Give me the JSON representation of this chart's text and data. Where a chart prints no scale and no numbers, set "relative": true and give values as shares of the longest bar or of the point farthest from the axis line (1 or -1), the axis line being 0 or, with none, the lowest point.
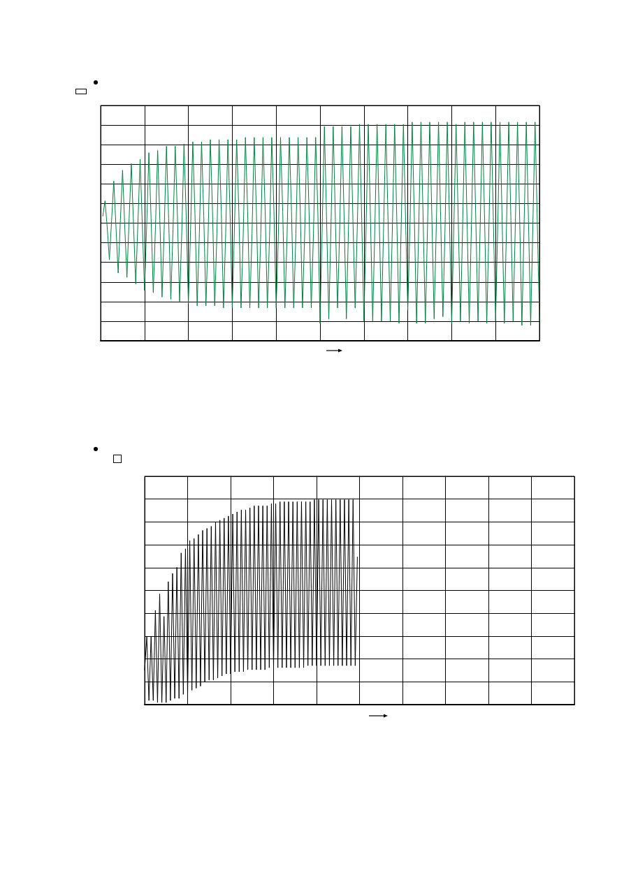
{
  "chart_data": [
    {
      "type": "line",
      "relative": true,
      "grid": true,
      "marker": "none",
      "line_style": "solid",
      "categories": [
        null,
        null,
        null,
        null,
        null,
        null,
        null,
        null,
        null,
        null,
        null,
        null,
        null,
        null,
        null,
        null,
        null,
        null,
        null,
        null,
        null,
        null,
        null,
        null,
        null,
        null,
        null,
        null,
        null,
        null,
        null,
        null,
        null,
        null,
        null,
        null,
        null,
        null,
        null,
        null,
        null,
        null,
        null,
        null,
        null,
        null,
        null,
        null,
        null,
        null,
        null,
        null,
        null,
        null,
        null,
        null,
        null,
        null,
        null,
        null,
        null,
        null,
        null,
        null,
        null,
        null,
        null,
        null,
        null,
        null,
        null,
        null,
        null,
        null,
        null,
        null,
        null,
        null,
        null,
        null,
        null,
        null,
        null,
        null,
        null,
        null,
        null,
        null,
        null,
        null,
        null,
        null,
        null,
        null,
        null,
        null,
        null,
        null,
        null,
        null,
        null,
        null,
        null,
        null,
        null,
        null,
        null,
        null,
        null,
        null,
        null,
        null,
        null,
        null,
        null,
        null,
        null,
        null,
        null,
        null,
        null,
        null,
        null,
        null,
        null,
        null,
        null,
        null,
        null,
        null,
        null,
        null,
        null,
        null,
        null,
        null,
        null,
        null,
        null,
        null,
        null,
        null,
        null,
        null,
        null,
        null,
        null,
        null,
        null,
        null,
        null,
        null,
        null,
        null,
        null,
        null,
        null,
        null,
        null,
        null,
        null,
        null,
        null,
        null,
        null,
        null,
        null,
        null,
        null,
        null,
        null,
        null,
        null,
        null,
        null,
        null,
        null,
        null,
        null,
        null,
        null,
        null,
        null,
        null,
        null,
        null,
        null,
        null,
        null,
        null,
        null,
        null,
        null,
        null,
        null,
        null,
        null,
        null,
        null,
        null,
        null
      ],
      "series": [
        {
          "color": "#008040",
          "values": [
            null,
            0.57,
            0.64,
            0.52,
            0.37,
            0.55,
            0.73,
            0.52,
            0.31,
            0.55,
            0.78,
            0.52,
            0.29,
            0.56,
            0.81,
            0.53,
            0.26,
            0.54,
            0.83,
            0.53,
            0.23,
            0.53,
            0.86,
            0.56,
            0.22,
            0.52,
            0.87,
            0.55,
            0.2,
            0.52,
            0.89,
            0.56,
            0.19,
            0.51,
            0.89,
            0.57,
            0.18,
            0.5,
            0.9,
            0.57,
            0.17,
            0.51,
            0.91,
            0.58,
            0.16,
            0.49,
            0.91,
            0.57,
            0.16,
            0.49,
            0.92,
            0.59,
            0.16,
            0.49,
            0.92,
            0.59,
            0.15,
            0.49,
            0.92,
            0.58,
            0.15,
            0.52,
            0.92,
            0.59,
            0.15,
            0.49,
            0.93,
            0.59,
            0.15,
            0.49,
            0.93,
            0.59,
            0.15,
            0.49,
            0.93,
            0.59,
            0.15,
            0.48,
            0.93,
            0.59,
            0.15,
            0.48,
            0.93,
            0.59,
            0.15,
            0.49,
            0.93,
            0.59,
            0.15,
            0.49,
            0.93,
            0.59,
            0.15,
            0.49,
            0.93,
            0.59,
            0.15,
            0.49,
            0.93,
            0.59,
            0.08,
            0.53,
            0.98,
            0.55,
            0.1,
            0.53,
            0.98,
            0.55,
            0.15,
            0.53,
            0.98,
            0.55,
            0.1,
            0.53,
            0.98,
            0.55,
            0.15,
            0.53,
            0.99,
            0.55,
            0.09,
            0.53,
            0.99,
            0.55,
            0.09,
            0.53,
            0.99,
            0.55,
            0.09,
            0.53,
            0.99,
            0.55,
            0.09,
            0.53,
            0.99,
            0.55,
            0.08,
            0.53,
            0.99,
            0.55,
            0.14,
            0.53,
            1,
            0.55,
            0.08,
            0.53,
            1,
            0.55,
            0.08,
            0.53,
            1,
            0.55,
            0.1,
            0.53,
            1,
            0.55,
            0.11,
            0.53,
            1,
            0.55,
            0.08,
            0.53,
            0.99,
            0.55,
            0.09,
            0.53,
            1,
            0.55,
            0.08,
            0.53,
            1,
            0.55,
            0.09,
            0.53,
            1,
            0.55,
            0.08,
            0.53,
            1,
            0.55,
            0.09,
            0.53,
            1,
            0.55,
            0.08,
            0.53,
            1,
            0.55,
            0.09,
            0.53,
            1,
            0.55,
            0.07,
            0.53,
            1,
            0.55,
            0.07,
            0.53,
            1,
            0.55,
            0.09
          ]
        }
      ]
    },
    {
      "type": "line",
      "relative": true,
      "grid": true,
      "marker": "none",
      "line_style": "solid",
      "categories": [
        null,
        null,
        null,
        null,
        null,
        null,
        null,
        null,
        null,
        null,
        null,
        null,
        null,
        null,
        null,
        null,
        null,
        null,
        null,
        null,
        null,
        null,
        null,
        null,
        null,
        null,
        null,
        null,
        null,
        null,
        null,
        null,
        null,
        null,
        null,
        null,
        null,
        null,
        null,
        null,
        null,
        null,
        null,
        null,
        null,
        null,
        null,
        null,
        null,
        null,
        null,
        null,
        null,
        null,
        null,
        null,
        null,
        null,
        null,
        null,
        null,
        null,
        null,
        null,
        null,
        null,
        null,
        null,
        null,
        null,
        null,
        null,
        null,
        null,
        null,
        null,
        null,
        null,
        null,
        null,
        null,
        null,
        null,
        null,
        null,
        null,
        null,
        null,
        null,
        null,
        null,
        null,
        null,
        null,
        null,
        null,
        null,
        null,
        null,
        null,
        null,
        null,
        null,
        null,
        null,
        null,
        null,
        null,
        null,
        null,
        null,
        null,
        null,
        null,
        null,
        null,
        null,
        null,
        null,
        null,
        null,
        null,
        null,
        null,
        null,
        null,
        null,
        null,
        null,
        null,
        null,
        null,
        null,
        null,
        null,
        null,
        null,
        null,
        null,
        null,
        null,
        null,
        null,
        null,
        null,
        null,
        null,
        null,
        null,
        null,
        null,
        null,
        null,
        null,
        null,
        null,
        null,
        null,
        null,
        null,
        null,
        null,
        null,
        null,
        null,
        null,
        null,
        null,
        null,
        null,
        null,
        null,
        null,
        null,
        null,
        null,
        null,
        null,
        null,
        null,
        null,
        null,
        null,
        null,
        null,
        null,
        null,
        null,
        null,
        null,
        null,
        null,
        null,
        null,
        null,
        null,
        null,
        null,
        null,
        null,
        null
      ],
      "series": [
        {
          "color": "#000000",
          "values": [
            0.17,
            0.33,
            0.02,
            0.33,
            0.02,
            0.46,
            0.01,
            0.54,
            0.01,
            0.43,
            0.01,
            0.6,
            0.02,
            0.64,
            0.03,
            0.67,
            0.03,
            0.74,
            0.05,
            0.76,
            0.05,
            0.8,
            0.07,
            0.81,
            0.08,
            0.83,
            0.09,
            0.85,
            0.11,
            0.86,
            0.12,
            0.87,
            0.12,
            0.89,
            0.13,
            0.9,
            0.14,
            0.91,
            0.15,
            0.92,
            0.15,
            0.93,
            0.16,
            0.94,
            0.16,
            0.95,
            0.16,
            0.95,
            0.17,
            0.96,
            0.17,
            0.97,
            0.17,
            0.97,
            0.17,
            0.97,
            0.17,
            0.97,
            0.18,
            0.98,
            0.18,
            0.98,
            0.18,
            0.99,
            0.18,
            0.99,
            0.18,
            0.99,
            0.18,
            0.99,
            0.18,
            0.99,
            0.18,
            0.99,
            0.18,
            0.99,
            0.19,
            0.99,
            0.19,
            1,
            0.19,
            1,
            0.19,
            1,
            0.19,
            1,
            0.19,
            1,
            0.19,
            1,
            0.19,
            1,
            0.19,
            1,
            0.19,
            1,
            0.19,
            1,
            0.19,
            0.72,
            null,
            null,
            null,
            null,
            null,
            null,
            null,
            null,
            null,
            null,
            null,
            null,
            null,
            null,
            null,
            null,
            null,
            null,
            null,
            null,
            null,
            null,
            null,
            null,
            null,
            null,
            null,
            null,
            null,
            null,
            null,
            null,
            null,
            null,
            null,
            null,
            null,
            null,
            null,
            null,
            null,
            null,
            null,
            null,
            null,
            null,
            null,
            null,
            null,
            null,
            null,
            null,
            null,
            null,
            null,
            null,
            null,
            null,
            null,
            null,
            null,
            null,
            null,
            null,
            null,
            null,
            null,
            null,
            null,
            null,
            null,
            null,
            null,
            null,
            null,
            null,
            null,
            null,
            null,
            null,
            null,
            null,
            null,
            null,
            null,
            null,
            null,
            null,
            null,
            null,
            null,
            null,
            null,
            null,
            null,
            null,
            null,
            null,
            null,
            null,
            null
          ]
        }
      ]
    }
  ]
}
